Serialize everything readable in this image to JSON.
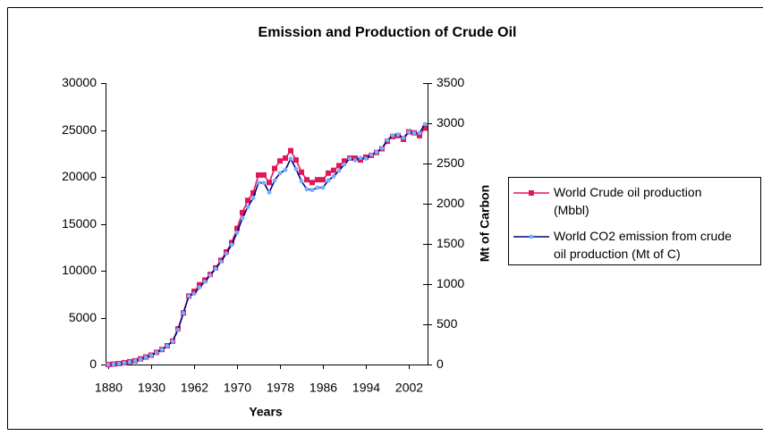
{
  "chart_data": {
    "type": "line",
    "title": "Emission and Production of Crude Oil",
    "x_label": "Years",
    "y2_label": "Mt of Carbon",
    "categories": [
      "1880",
      null,
      null,
      null,
      null,
      null,
      null,
      null,
      "1930",
      null,
      null,
      null,
      null,
      null,
      null,
      null,
      "1962",
      null,
      null,
      null,
      null,
      null,
      null,
      null,
      "1970",
      null,
      null,
      null,
      null,
      null,
      null,
      null,
      "1978",
      null,
      null,
      null,
      null,
      null,
      null,
      null,
      "1986",
      null,
      null,
      null,
      null,
      null,
      null,
      null,
      "1994",
      null,
      null,
      null,
      null,
      null,
      null,
      null,
      "2002",
      null,
      null,
      null
    ],
    "series": [
      {
        "name": "World Crude oil production (Mbbl)",
        "color": "#e0185a",
        "marker": "square",
        "values": [
          0,
          50,
          100,
          200,
          300,
          400,
          600,
          800,
          1000,
          1300,
          1600,
          2000,
          2500,
          3800,
          5500,
          7300,
          7800,
          8500,
          9000,
          9600,
          10300,
          11100,
          12000,
          13000,
          14500,
          16200,
          17500,
          18300,
          20200,
          20200,
          19400,
          20900,
          21700,
          22000,
          22800,
          21800,
          20500,
          19700,
          19400,
          19700,
          19700,
          20400,
          20700,
          21200,
          21700,
          22000,
          22000,
          21800,
          22100,
          22300,
          22600,
          23000,
          23800,
          24300,
          24400,
          24000,
          24800,
          24700,
          24400,
          25200
        ]
      },
      {
        "name": "World CO2 emission from crude oil production (Mt of C)",
        "color": "#000080",
        "marker_color": "#6fb1ff",
        "marker": "circle",
        "axis": "y2",
        "values": [
          0,
          5,
          10,
          20,
          30,
          45,
          65,
          90,
          115,
          150,
          185,
          230,
          290,
          430,
          640,
          850,
          880,
          960,
          1030,
          1110,
          1190,
          1280,
          1380,
          1490,
          1640,
          1820,
          1960,
          2070,
          2260,
          2260,
          2140,
          2290,
          2380,
          2420,
          2560,
          2430,
          2280,
          2180,
          2170,
          2200,
          2200,
          2290,
          2340,
          2410,
          2490,
          2560,
          2540,
          2570,
          2560,
          2610,
          2640,
          2690,
          2790,
          2850,
          2860,
          2820,
          2890,
          2880,
          2880,
          2990
        ]
      }
    ],
    "ylim": [
      0,
      30000
    ],
    "yticks": [
      0,
      5000,
      10000,
      15000,
      20000,
      25000,
      30000
    ],
    "y2lim": [
      0,
      3500
    ],
    "y2ticks": [
      0,
      500,
      1000,
      1500,
      2000,
      2500,
      3000,
      3500
    ],
    "legend": "right"
  }
}
